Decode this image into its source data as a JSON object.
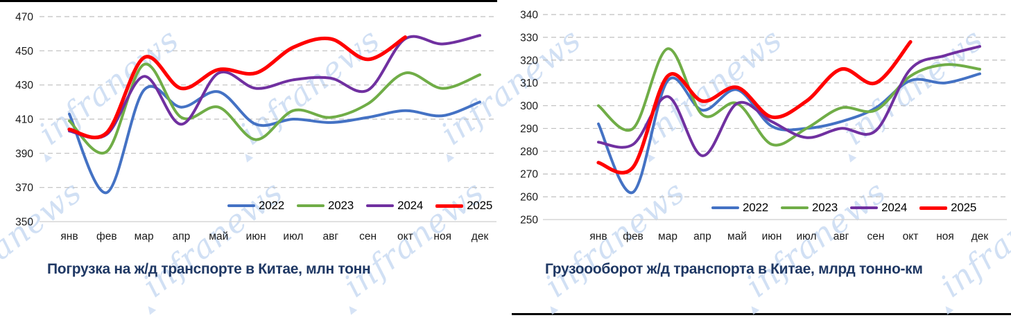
{
  "colors": {
    "title": "#1F3864",
    "axis_text": "#1A1A1A",
    "grid": "#BFBFBF",
    "baseline": "#D6D6D6",
    "divider": "#000000",
    "watermark": "#C6D9F2"
  },
  "watermark": {
    "text": "infranews",
    "arrow_icon": "▲"
  },
  "chart_data": [
    {
      "type": "line",
      "title": "Погрузка на ж/д транспорте в Китае, млн тонн",
      "categories": [
        "янв",
        "фев",
        "мар",
        "апр",
        "май",
        "июн",
        "июл",
        "авг",
        "сен",
        "окт",
        "ноя",
        "дек"
      ],
      "ylim": [
        350,
        470
      ],
      "ytick_step": 20,
      "grid": "horizontal-dashed",
      "legend_position": "inside-bottom-right",
      "series": [
        {
          "name": "2022",
          "color": "#4472C4",
          "values": [
            413,
            367,
            427,
            417,
            426,
            407,
            410,
            408,
            411,
            415,
            412,
            420
          ]
        },
        {
          "name": "2023",
          "color": "#70AD47",
          "values": [
            409,
            391,
            442,
            411,
            417,
            398,
            415,
            411,
            419,
            437,
            428,
            436
          ]
        },
        {
          "name": "2024",
          "color": "#7030A0",
          "values": [
            403,
            401,
            435,
            407,
            437,
            428,
            433,
            434,
            427,
            457,
            454,
            459
          ]
        },
        {
          "name": "2025",
          "color": "#FF0000",
          "values": [
            404,
            402,
            446,
            428,
            439,
            437,
            452,
            457,
            445,
            458
          ]
        }
      ]
    },
    {
      "type": "line",
      "title": "Грузоооборот ж/д транспорта в Китае, млрд тонно-км",
      "categories": [
        "янв",
        "фев",
        "мар",
        "апр",
        "май",
        "июн",
        "июл",
        "авг",
        "сен",
        "окт",
        "ноя",
        "дек"
      ],
      "ylim": [
        250,
        340
      ],
      "ytick_step": 10,
      "grid": "horizontal-dashed",
      "legend_position": "inside-bottom-right",
      "series": [
        {
          "name": "2022",
          "color": "#4472C4",
          "values": [
            292,
            262,
            311,
            298,
            307,
            291,
            290,
            293,
            299,
            311,
            310,
            314
          ]
        },
        {
          "name": "2023",
          "color": "#70AD47",
          "values": [
            300,
            290,
            325,
            296,
            301,
            283,
            290,
            299,
            298,
            313,
            318,
            316
          ]
        },
        {
          "name": "2024",
          "color": "#7030A0",
          "values": [
            284,
            283,
            304,
            278,
            301,
            293,
            286,
            290,
            289,
            316,
            322,
            326
          ]
        },
        {
          "name": "2025",
          "color": "#FF0000",
          "values": [
            275,
            273,
            313,
            302,
            308,
            295,
            302,
            316,
            310,
            328
          ]
        }
      ]
    }
  ]
}
